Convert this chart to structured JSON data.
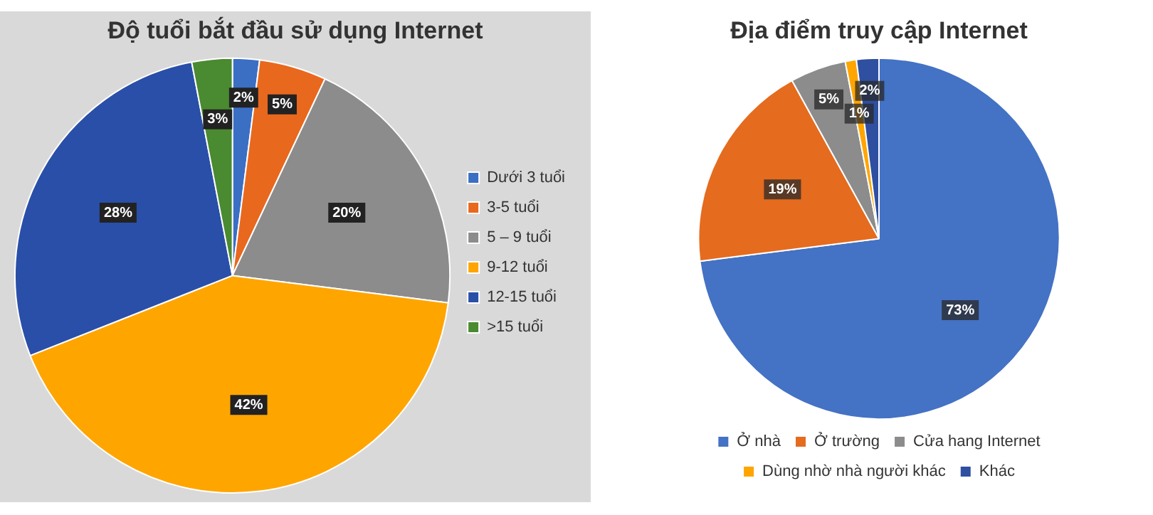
{
  "chart_data": [
    {
      "type": "pie",
      "title": "Độ tuổi bắt đầu sử dụng Internet",
      "categories": [
        "Dưới 3 tuổi",
        "3-5 tuổi",
        "5 – 9 tuổi",
        "9-12 tuổi",
        "12-15 tuổi",
        ">15 tuổi"
      ],
      "values": [
        2,
        5,
        20,
        42,
        28,
        3
      ],
      "value_labels": [
        "2%",
        "5%",
        "20%",
        "42%",
        "28%",
        "3%"
      ],
      "colors": [
        "#3a6fc4",
        "#e8681e",
        "#8c8c8c",
        "#ffa500",
        "#2a4fa8",
        "#4a8a30"
      ],
      "legend": "right"
    },
    {
      "type": "pie",
      "title": "Địa điểm truy cập Internet",
      "categories": [
        "Ở nhà",
        "Ở trường",
        "Cửa hang Internet",
        "Dùng nhờ nhà người khác",
        "Khác"
      ],
      "values": [
        73,
        19,
        5,
        1,
        2
      ],
      "value_labels": [
        "73%",
        "19%",
        "5%",
        "1%",
        "2%"
      ],
      "colors": [
        "#4472c4",
        "#e56b1f",
        "#8c8c8c",
        "#ffa500",
        "#2f4fa0"
      ],
      "legend": "bottom"
    }
  ]
}
